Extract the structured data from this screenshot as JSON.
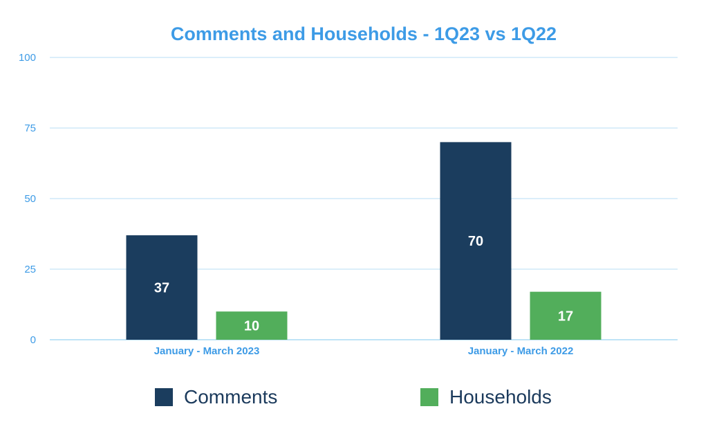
{
  "chart_data": {
    "type": "bar",
    "title": "Comments and Households - 1Q23 vs 1Q22",
    "xlabel": "",
    "ylabel": "",
    "categories": [
      "January - March 2023",
      "January - March 2022"
    ],
    "series": [
      {
        "name": "Comments",
        "values": [
          37,
          70
        ],
        "color": "#1b3d5e"
      },
      {
        "name": "Households",
        "values": [
          10,
          17
        ],
        "color": "#52ae5b"
      }
    ],
    "ylim": [
      0,
      100
    ],
    "yticks": [
      0,
      25,
      50,
      75,
      100
    ],
    "grid": true,
    "legend_position": "bottom"
  }
}
